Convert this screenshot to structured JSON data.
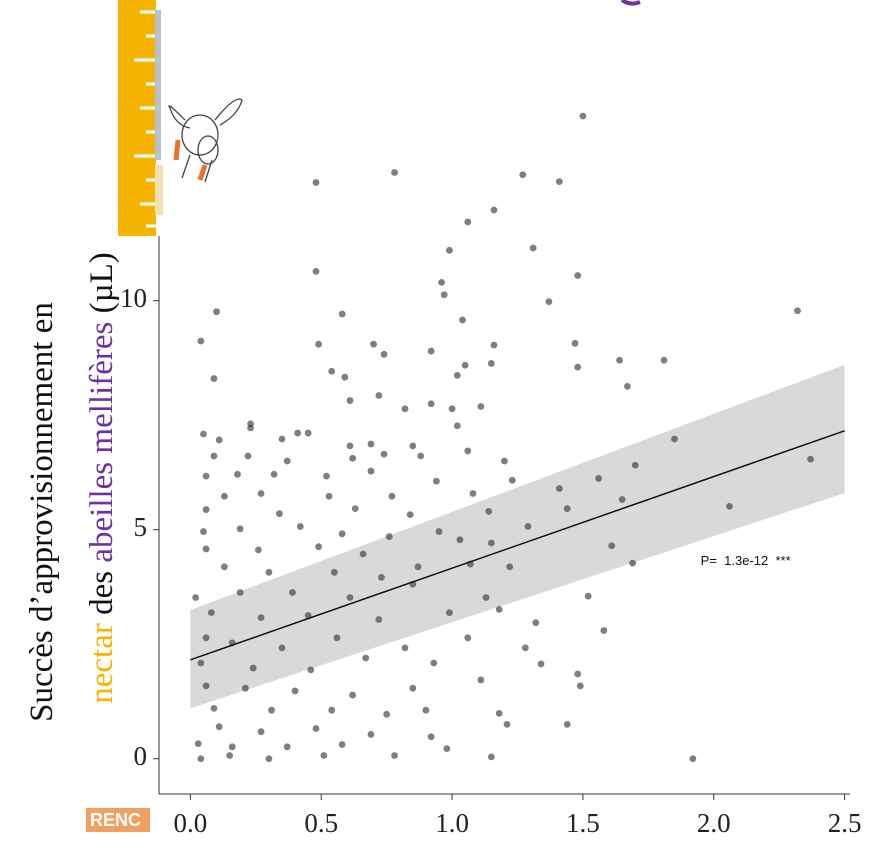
{
  "chart_data": {
    "type": "scatter",
    "y_label_line1": "Succès d’approvisionnement en",
    "y_label_line2": [
      {
        "text": "nectar",
        "color": "#f5b400"
      },
      {
        "text": " des ",
        "color": "#111111"
      },
      {
        "text": "abeilles mellifères",
        "color": "#7030a0"
      },
      {
        "text": " (µL)",
        "color": "#111111"
      }
    ],
    "annotation": {
      "text": "P=  1.3e-12  ***",
      "x": 1.95,
      "y": 4.3
    },
    "footer_text": "RENC",
    "xlim": [
      -0.12,
      2.62
    ],
    "ylim": [
      -0.77,
      14.6
    ],
    "xticks": [
      {
        "value": 0,
        "label": "0.0"
      },
      0.5,
      {
        "value": 1,
        "label": "1.0"
      },
      1.5,
      {
        "value": 2,
        "label": "2.0"
      },
      2.5
    ],
    "yticks": [
      0,
      5,
      10
    ],
    "fit": {
      "color": "#111111",
      "band_color": "#d9d9d9",
      "x": [
        0,
        2.5
      ],
      "y": [
        2.16,
        7.16
      ],
      "lower": [
        1.1,
        5.8
      ],
      "upper": [
        3.25,
        8.6
      ]
    },
    "series": [
      {
        "color": "#3a3a3a",
        "x": [
          1.5,
          0.48,
          0.78,
          1.27,
          1.41,
          1.16,
          1.06,
          1.31,
          0.99,
          0.48,
          1.48,
          0.96,
          1.37,
          0.1,
          0.58,
          2.32,
          1.04,
          0.97,
          0.04,
          0.49,
          0.7,
          0.74,
          1.16,
          1.47,
          0.92,
          1.64,
          1.81,
          0.54,
          1.05,
          1.15,
          1.48,
          0.09,
          0.59,
          1.67,
          1.02,
          0.61,
          0.72,
          0.82,
          0.92,
          1.0,
          1.11,
          0.23,
          0.23,
          0.05,
          0.11,
          0.35,
          0.41,
          0.45,
          1.85,
          0.61,
          0.69,
          0.85,
          1.02,
          1.06,
          0.09,
          0.22,
          0.37,
          0.62,
          0.74,
          0.88,
          1.2,
          1.7,
          2.37,
          0.06,
          0.18,
          0.32,
          0.52,
          0.69,
          0.94,
          1.23,
          1.56,
          0.13,
          0.27,
          0.53,
          0.77,
          1.08,
          1.41,
          1.65,
          0.06,
          0.34,
          0.63,
          0.84,
          1.14,
          1.44,
          2.06,
          0.05,
          0.19,
          0.42,
          0.58,
          0.76,
          0.95,
          1.29,
          0.06,
          0.26,
          0.49,
          0.66,
          1.03,
          1.15,
          1.61,
          0.13,
          0.3,
          0.55,
          0.73,
          0.87,
          1.07,
          1.22,
          1.69,
          0.02,
          0.19,
          0.39,
          0.61,
          0.85,
          1.13,
          1.52,
          0.08,
          0.27,
          0.45,
          0.72,
          0.99,
          1.18,
          1.32,
          1.58,
          0.06,
          0.16,
          0.35,
          0.56,
          0.82,
          1.06,
          1.28,
          0.04,
          0.24,
          0.46,
          0.67,
          0.93,
          1.34,
          0.06,
          0.21,
          0.4,
          0.62,
          0.85,
          1.11,
          1.48,
          1.49,
          0.09,
          0.31,
          0.54,
          0.75,
          0.9,
          1.18,
          0.11,
          0.27,
          0.48,
          0.69,
          0.92,
          1.21,
          1.44,
          0.03,
          0.16,
          0.37,
          0.58,
          0.98,
          0.04,
          0.15,
          0.3,
          0.51,
          0.78,
          1.15,
          1.92
        ],
        "y": [
          14.03,
          12.58,
          12.8,
          12.75,
          12.6,
          11.98,
          11.72,
          11.15,
          11.1,
          10.64,
          10.55,
          10.4,
          9.98,
          9.76,
          9.71,
          9.78,
          9.58,
          10.13,
          9.12,
          9.05,
          9.05,
          8.83,
          9.03,
          9.07,
          8.9,
          8.7,
          8.7,
          8.46,
          8.59,
          8.63,
          8.55,
          8.3,
          8.33,
          8.13,
          8.37,
          7.82,
          7.93,
          7.64,
          7.75,
          7.64,
          7.69,
          7.31,
          7.22,
          7.09,
          6.96,
          6.98,
          7.11,
          7.11,
          6.98,
          6.83,
          6.87,
          6.83,
          7.27,
          6.72,
          6.61,
          6.61,
          6.5,
          6.56,
          6.65,
          6.61,
          6.5,
          6.41,
          6.54,
          6.17,
          6.21,
          6.21,
          6.17,
          6.28,
          6.06,
          6.08,
          6.12,
          5.73,
          5.79,
          5.73,
          5.73,
          5.79,
          5.9,
          5.66,
          5.44,
          5.35,
          5.46,
          5.33,
          5.4,
          5.46,
          5.51,
          4.96,
          5.02,
          5.07,
          4.91,
          4.85,
          4.96,
          5.07,
          4.58,
          4.56,
          4.63,
          4.47,
          4.78,
          4.71,
          4.65,
          4.19,
          4.07,
          4.07,
          3.96,
          4.19,
          4.25,
          4.19,
          4.27,
          3.52,
          3.63,
          3.63,
          3.52,
          3.81,
          3.52,
          3.55,
          3.19,
          3.08,
          3.13,
          3.04,
          3.19,
          3.26,
          2.97,
          2.8,
          2.64,
          2.53,
          2.42,
          2.64,
          2.42,
          2.64,
          2.42,
          2.09,
          1.98,
          1.94,
          2.2,
          2.09,
          2.07,
          1.59,
          1.54,
          1.48,
          1.39,
          1.54,
          1.72,
          1.85,
          1.59,
          1.1,
          1.06,
          1.06,
          0.97,
          1.06,
          0.99,
          0.7,
          0.59,
          0.66,
          0.53,
          0.48,
          0.75,
          0.75,
          0.33,
          0.26,
          0.26,
          0.31,
          0.22,
          0.0,
          0.07,
          0.0,
          0.07,
          0.07,
          0.04,
          0.0
        ]
      }
    ]
  }
}
